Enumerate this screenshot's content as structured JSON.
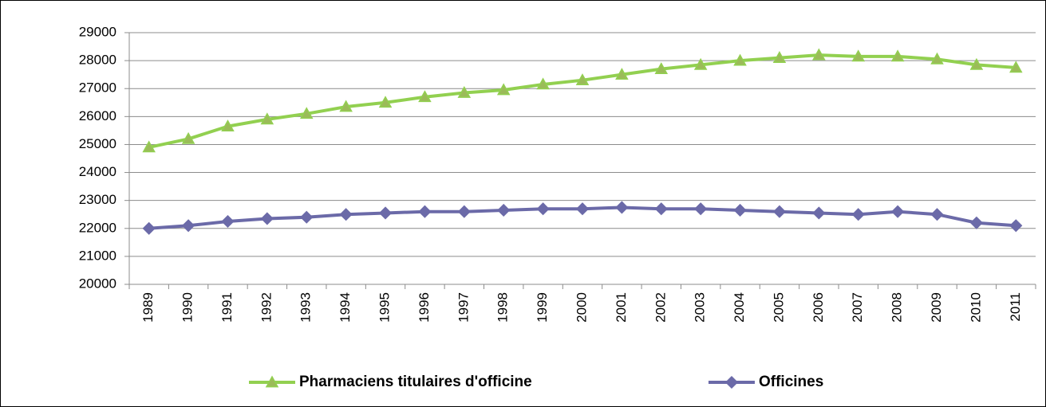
{
  "chart_data": {
    "type": "line",
    "categories": [
      "1989",
      "1990",
      "1991",
      "1992",
      "1993",
      "1994",
      "1995",
      "1996",
      "1997",
      "1998",
      "1999",
      "2000",
      "2001",
      "2002",
      "2003",
      "2004",
      "2005",
      "2006",
      "2007",
      "2008",
      "2009",
      "2010",
      "2011"
    ],
    "series": [
      {
        "name": "Pharmaciens titulaires d'officine",
        "color": "#92d050",
        "marker": "triangle",
        "values": [
          24900,
          25200,
          25650,
          25900,
          26100,
          26350,
          26500,
          26700,
          26850,
          26950,
          27150,
          27300,
          27500,
          27700,
          27850,
          28000,
          28100,
          28200,
          28150,
          28150,
          28050,
          27850,
          27750
        ]
      },
      {
        "name": "Officines",
        "color": "#6b6aa8",
        "marker": "diamond",
        "values": [
          22000,
          22100,
          22250,
          22350,
          22400,
          22500,
          22550,
          22600,
          22600,
          22650,
          22700,
          22700,
          22750,
          22700,
          22700,
          22650,
          22600,
          22550,
          22500,
          22600,
          22500,
          22200,
          22100
        ]
      }
    ],
    "ylim": [
      20000,
      29000
    ],
    "yticks": [
      20000,
      21000,
      22000,
      23000,
      24000,
      25000,
      26000,
      27000,
      28000,
      29000
    ],
    "grid": true
  }
}
